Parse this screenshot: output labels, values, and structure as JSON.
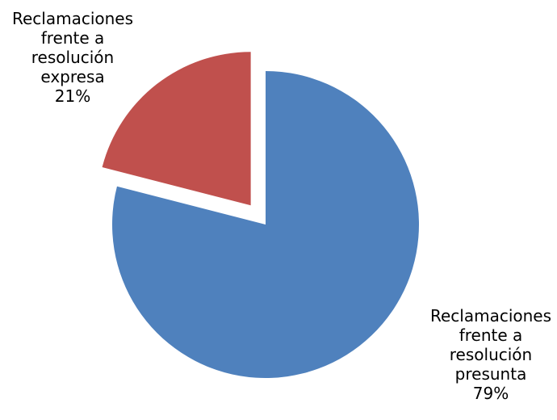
{
  "chart_data": {
    "type": "pie",
    "slices": [
      {
        "label": [
          "Reclamaciones",
          "frente a",
          "resolución",
          "presunta"
        ],
        "value": 79,
        "percent_label": "79%",
        "color": "#4F81BD",
        "exploded": false
      },
      {
        "label": [
          "Reclamaciones",
          "frente a",
          "resolución",
          "expresa"
        ],
        "value": 21,
        "percent_label": "21%",
        "color": "#C0504D",
        "exploded": true
      }
    ],
    "start_angle": "12 o'clock",
    "direction": "clockwise",
    "legend": "none"
  }
}
